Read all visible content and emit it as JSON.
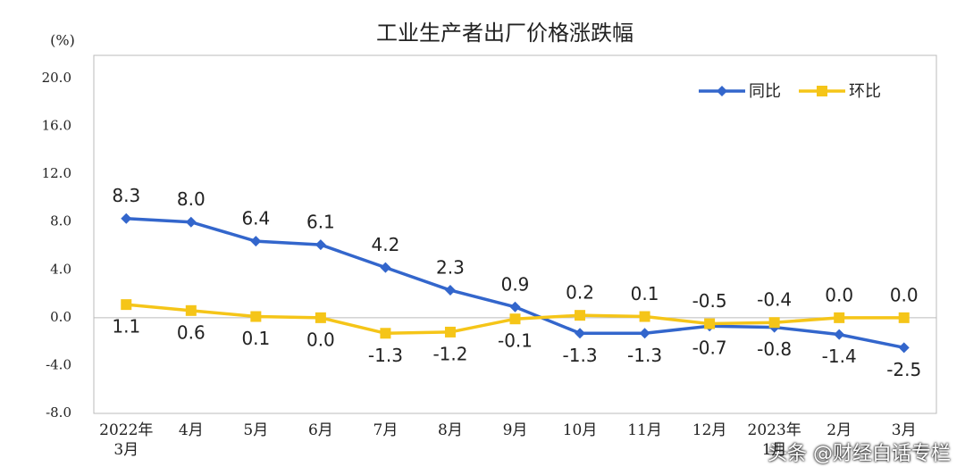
{
  "chart_data": {
    "type": "line",
    "title": "工业生产者出厂价格涨跌幅",
    "y_label": "(%)",
    "categories": [
      "2022年\n3月",
      "4月",
      "5月",
      "6月",
      "7月",
      "8月",
      "9月",
      "10月",
      "11月",
      "12月",
      "2023年\n1月",
      "2月",
      "3月"
    ],
    "series": [
      {
        "name": "同比",
        "color": "#3366cc",
        "marker": "diamond",
        "values": [
          8.3,
          8.0,
          6.4,
          6.1,
          4.2,
          2.3,
          0.9,
          -1.3,
          -1.3,
          -0.7,
          -0.8,
          -1.4,
          -2.5
        ],
        "value_labels": [
          "8.3",
          "8.0",
          "6.4",
          "6.1",
          "4.2",
          "2.3",
          "0.9",
          "-1.3",
          "-1.3",
          "-0.7",
          "-0.8",
          "-1.4",
          "-2.5"
        ]
      },
      {
        "name": "环比",
        "color": "#f5c518",
        "marker": "square",
        "values": [
          1.1,
          0.6,
          0.1,
          0.0,
          -1.3,
          -1.2,
          -0.1,
          0.2,
          0.1,
          -0.5,
          -0.4,
          0.0,
          0.0
        ],
        "value_labels": [
          "1.1",
          "0.6",
          "0.1",
          "0.0",
          "-1.3",
          "-1.2",
          "-0.1",
          "0.2",
          "0.1",
          "-0.5",
          "-0.4",
          "0.0",
          "0.0"
        ]
      }
    ],
    "ylim": [
      -8,
      20
    ],
    "yticks": [
      {
        "value": -8,
        "label": "-8.0"
      },
      {
        "value": -4,
        "label": "-4.0"
      },
      {
        "value": 0,
        "label": "0.0"
      },
      {
        "value": 4,
        "label": "4.0"
      },
      {
        "value": 8,
        "label": "8.0"
      },
      {
        "value": 12,
        "label": "12.0"
      },
      {
        "value": 16,
        "label": "16.0"
      },
      {
        "value": 20,
        "label": "20.0"
      }
    ],
    "grid": false,
    "zero_line": true,
    "legend": "upper right",
    "watermark": "头条 @财经白话专栏"
  }
}
